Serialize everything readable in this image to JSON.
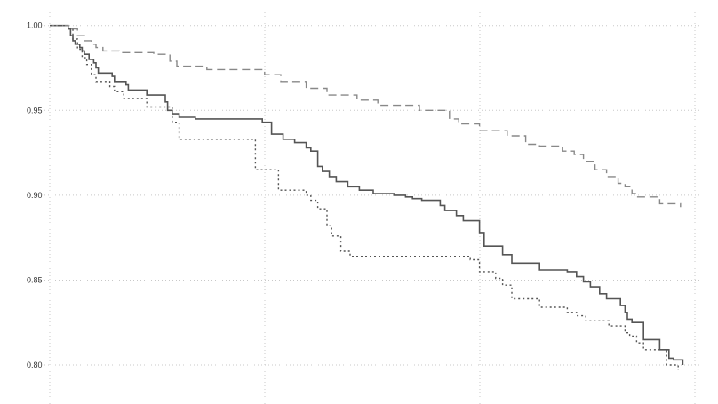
{
  "chart_data": {
    "type": "line",
    "title": "",
    "xlabel": "",
    "ylabel": "",
    "x_ticks": [
      "",
      "",
      "",
      ""
    ],
    "y_ticks": [
      "1.00",
      "0.95",
      "0.90",
      "0.85",
      "0.80"
    ],
    "xlim": [
      0,
      28
    ],
    "ylim": [
      0.777,
      1.003
    ],
    "grid": true,
    "legend": "none",
    "series": [
      {
        "style": "solid",
        "color": "#555555",
        "x": [
          0,
          0.8,
          0.9,
          1.0,
          1.1,
          1.3,
          1.4,
          1.5,
          1.7,
          1.9,
          2.0,
          2.1,
          2.7,
          2.8,
          3.3,
          3.4,
          4.2,
          5.0,
          5.1,
          5.3,
          5.6,
          6.3,
          7.3,
          8.4,
          9.2,
          9.6,
          10.1,
          10.6,
          11.1,
          11.3,
          11.6,
          11.8,
          12.1,
          12.4,
          12.9,
          13.4,
          14.0,
          14.9,
          15.4,
          15.7,
          16.1,
          16.9,
          17.1,
          17.6,
          17.9,
          18.6,
          18.8,
          19.6,
          20.0,
          21.2,
          22.4,
          22.8,
          23.1,
          23.4,
          23.8,
          24.1,
          24.7,
          24.9,
          25.0,
          25.2,
          25.7,
          26.4,
          26.8,
          27.0,
          27.4
        ],
        "y": [
          1.0,
          0.998,
          0.994,
          0.991,
          0.989,
          0.987,
          0.985,
          0.983,
          0.98,
          0.978,
          0.975,
          0.972,
          0.97,
          0.967,
          0.965,
          0.962,
          0.959,
          0.955,
          0.95,
          0.948,
          0.946,
          0.945,
          0.945,
          0.945,
          0.943,
          0.936,
          0.933,
          0.931,
          0.928,
          0.926,
          0.917,
          0.914,
          0.911,
          0.908,
          0.905,
          0.903,
          0.901,
          0.9,
          0.899,
          0.898,
          0.897,
          0.894,
          0.891,
          0.888,
          0.885,
          0.878,
          0.87,
          0.865,
          0.86,
          0.856,
          0.855,
          0.852,
          0.849,
          0.846,
          0.842,
          0.839,
          0.835,
          0.831,
          0.827,
          0.825,
          0.815,
          0.809,
          0.804,
          0.803,
          0.8
        ]
      },
      {
        "style": "dashed",
        "color": "#888888",
        "x": [
          0,
          0.8,
          1.2,
          1.5,
          1.8,
          2.0,
          2.3,
          3.0,
          4.5,
          5.2,
          5.5,
          6.8,
          9.3,
          10.0,
          11.1,
          12.0,
          13.3,
          14.2,
          16.0,
          17.3,
          17.7,
          18.6,
          19.8,
          20.6,
          21.2,
          22.2,
          22.7,
          23.1,
          23.6,
          24.1,
          24.6,
          24.9,
          25.2,
          25.4,
          26.4,
          27.3
        ],
        "y": [
          1.0,
          0.998,
          0.994,
          0.991,
          0.989,
          0.987,
          0.985,
          0.984,
          0.983,
          0.979,
          0.976,
          0.974,
          0.971,
          0.967,
          0.963,
          0.959,
          0.956,
          0.953,
          0.95,
          0.945,
          0.942,
          0.938,
          0.935,
          0.93,
          0.929,
          0.926,
          0.924,
          0.92,
          0.915,
          0.911,
          0.907,
          0.905,
          0.901,
          0.899,
          0.895,
          0.893
        ]
      },
      {
        "style": "dotted",
        "color": "#555555",
        "x": [
          0,
          0.8,
          1.0,
          1.2,
          1.4,
          1.6,
          1.8,
          2.0,
          2.6,
          2.8,
          3.2,
          4.2,
          5.3,
          5.6,
          8.9,
          9.9,
          11.1,
          11.3,
          11.6,
          12.0,
          12.2,
          12.6,
          13.0,
          18.1,
          18.2,
          18.6,
          19.3,
          19.6,
          20.0,
          21.2,
          22.4,
          22.8,
          23.2,
          24.2,
          24.9,
          25.1,
          25.4,
          25.7,
          26.7,
          27.2
        ],
        "y": [
          1.0,
          0.998,
          0.992,
          0.986,
          0.981,
          0.977,
          0.971,
          0.967,
          0.964,
          0.961,
          0.957,
          0.952,
          0.943,
          0.933,
          0.915,
          0.903,
          0.9,
          0.897,
          0.892,
          0.882,
          0.876,
          0.867,
          0.864,
          0.864,
          0.862,
          0.855,
          0.851,
          0.847,
          0.839,
          0.834,
          0.831,
          0.829,
          0.826,
          0.823,
          0.819,
          0.817,
          0.813,
          0.809,
          0.8,
          0.797
        ]
      }
    ]
  }
}
